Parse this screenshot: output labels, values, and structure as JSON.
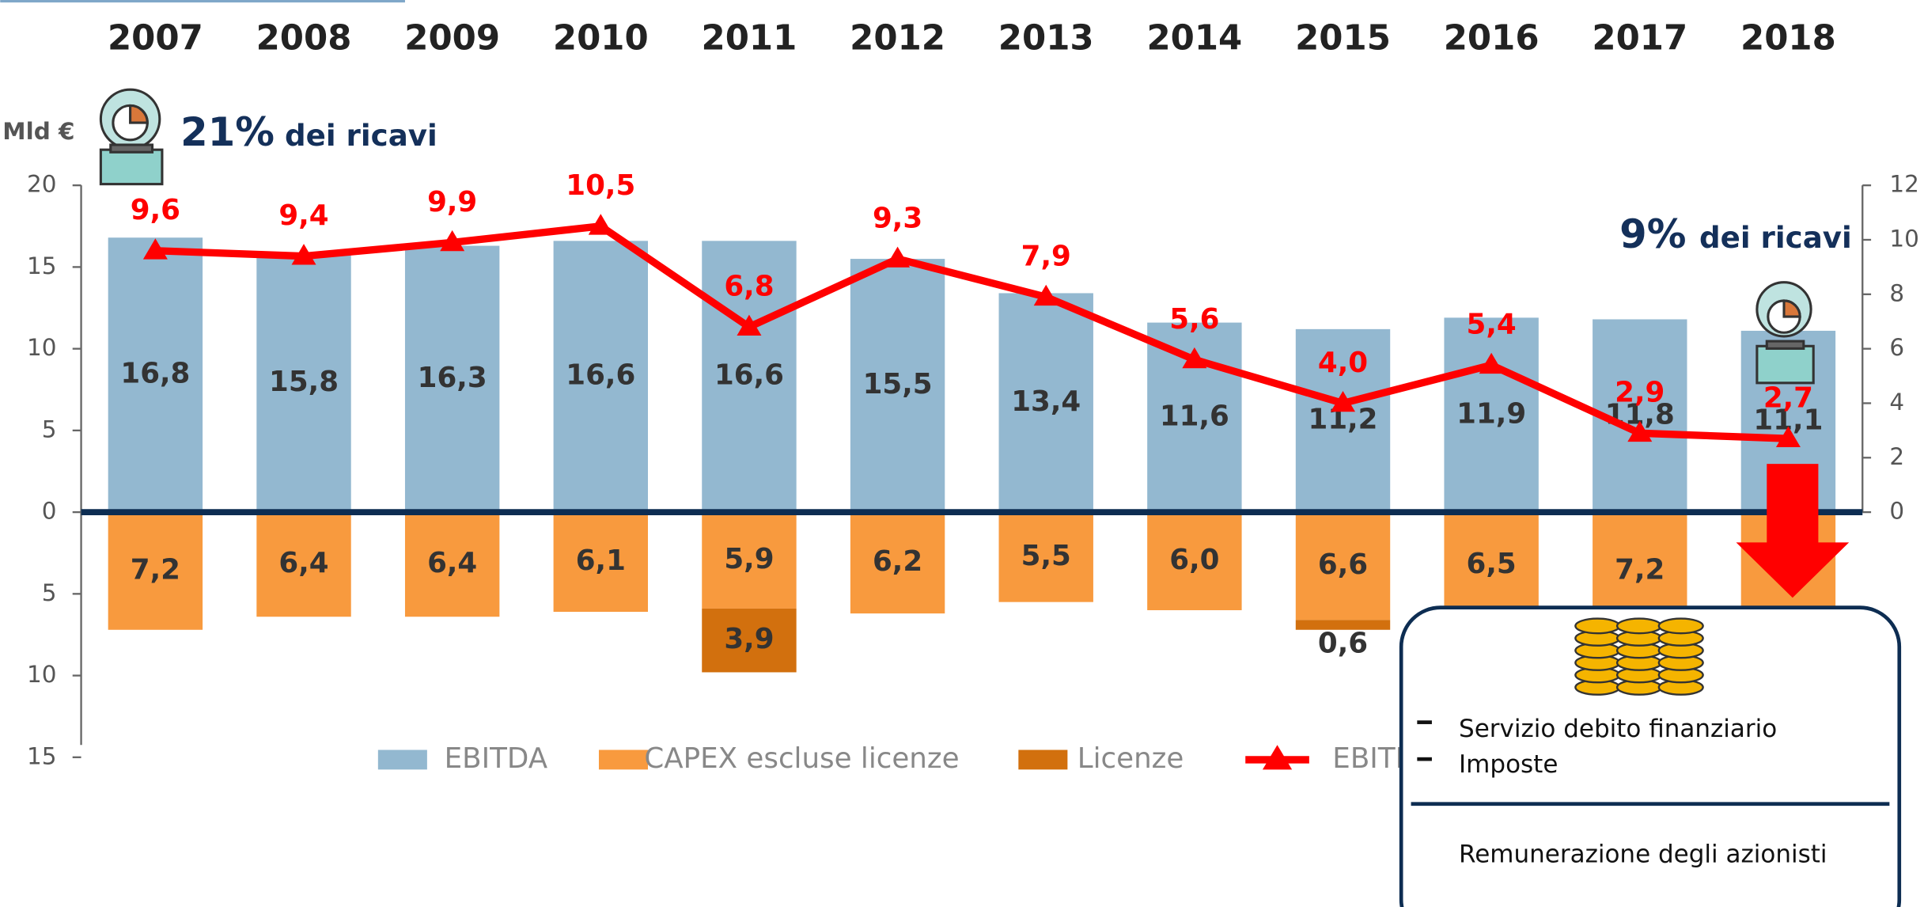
{
  "chart_data": {
    "type": "bar",
    "unit_label": "Mld €",
    "categories": [
      "2007",
      "2008",
      "2009",
      "2010",
      "2011",
      "2012",
      "2013",
      "2014",
      "2015",
      "2016",
      "2017",
      "2018"
    ],
    "series": [
      {
        "name": "EBITDA",
        "color": "#93b8d0",
        "values": [
          16.8,
          15.8,
          16.3,
          16.6,
          16.6,
          15.5,
          13.4,
          11.6,
          11.2,
          11.9,
          11.8,
          11.1
        ],
        "value_labels": [
          "16,8",
          "15,8",
          "16,3",
          "16,6",
          "16,6",
          "15,5",
          "13,4",
          "11,6",
          "11,2",
          "11,9",
          "11,8",
          "11,1"
        ]
      },
      {
        "name": "CAPEX escluse licenze",
        "color": "#f89a3e",
        "values": [
          -7.2,
          -6.4,
          -6.4,
          -6.1,
          -5.9,
          -6.2,
          -5.5,
          -6.0,
          -6.6,
          -6.5,
          -7.2,
          -6.2
        ],
        "value_labels": [
          "7,2",
          "6,4",
          "6,4",
          "6,1",
          "5,9",
          "6,2",
          "5,5",
          "6,0",
          "6,6",
          "6,5",
          "7,2",
          null
        ]
      },
      {
        "name": "Licenze",
        "color": "#d2700e",
        "values": [
          null,
          null,
          null,
          null,
          -3.9,
          null,
          null,
          null,
          -0.6,
          null,
          null,
          null
        ],
        "value_labels": [
          null,
          null,
          null,
          null,
          "3,9",
          null,
          null,
          null,
          "0,6",
          null,
          null,
          null
        ]
      },
      {
        "name": "EBITDA-CAPEX",
        "color": "#ff0000",
        "type": "line",
        "axis": "y2",
        "values": [
          9.6,
          9.4,
          9.9,
          10.5,
          6.8,
          9.3,
          7.9,
          5.6,
          4.0,
          5.4,
          2.9,
          2.7
        ],
        "value_labels": [
          "9,6",
          "9,4",
          "9,9",
          "10,5",
          "6,8",
          "9,3",
          "7,9",
          "5,6",
          "4,0",
          "5,4",
          "2,9",
          "2,7"
        ]
      }
    ],
    "ylim": [
      -15,
      20
    ],
    "yticks": [
      20,
      15,
      10,
      5,
      0,
      {
        "value": -5,
        "label": "5"
      },
      {
        "value": -10,
        "label": "10"
      },
      {
        "value": -15,
        "label": "15"
      }
    ],
    "y2lim": [
      0,
      12
    ],
    "y2ticks": [
      0,
      2,
      4,
      6,
      8,
      10,
      12
    ],
    "annotations": [
      {
        "value_text": "21%",
        "text": "dei ricavi"
      },
      {
        "value_text": "9%",
        "text": "dei ricavi"
      }
    ],
    "callout": {
      "items": [
        "Servizio debito finanziario",
        "Imposte"
      ],
      "footer": "Remunerazione degli azionisti"
    }
  }
}
